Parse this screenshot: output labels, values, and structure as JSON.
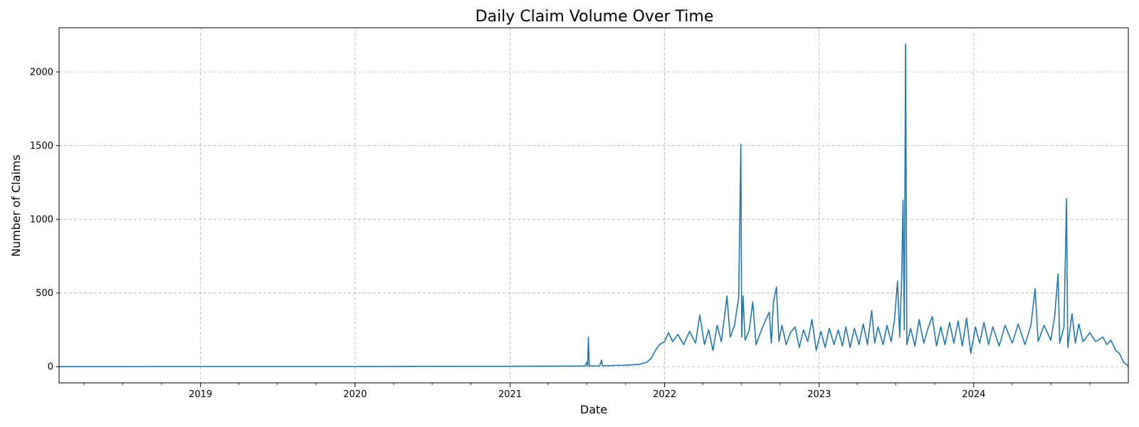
{
  "chart_data": {
    "type": "line",
    "title": "Daily Claim Volume Over Time",
    "xlabel": "Date",
    "ylabel": "Number of Claims",
    "x_range": [
      "2018-02-01",
      "2024-12-31"
    ],
    "ylim": [
      -110,
      2300
    ],
    "grid": true,
    "line_color": "#1f77b4",
    "x_ticks": [
      {
        "date": "2019-01-01",
        "label": "2019"
      },
      {
        "date": "2020-01-01",
        "label": "2020"
      },
      {
        "date": "2021-01-01",
        "label": "2021"
      },
      {
        "date": "2022-01-01",
        "label": "2022"
      },
      {
        "date": "2023-01-01",
        "label": "2023"
      },
      {
        "date": "2024-01-01",
        "label": "2024"
      }
    ],
    "y_ticks": [
      {
        "value": 0,
        "label": "0"
      },
      {
        "value": 500,
        "label": "500"
      },
      {
        "value": 1000,
        "label": "1000"
      },
      {
        "value": 1500,
        "label": "1500"
      },
      {
        "value": 2000,
        "label": "2000"
      }
    ],
    "series": [
      {
        "points": [
          [
            "2018-02-01",
            0
          ],
          [
            "2018-06-01",
            0
          ],
          [
            "2018-10-01",
            1
          ],
          [
            "2019-03-01",
            1
          ],
          [
            "2019-08-01",
            1
          ],
          [
            "2020-01-01",
            1
          ],
          [
            "2020-06-01",
            2
          ],
          [
            "2020-11-01",
            2
          ],
          [
            "2021-03-01",
            3
          ],
          [
            "2021-06-01",
            4
          ],
          [
            "2021-06-28",
            5
          ],
          [
            "2021-07-01",
            30
          ],
          [
            "2021-07-03",
            3
          ],
          [
            "2021-07-05",
            200
          ],
          [
            "2021-07-07",
            5
          ],
          [
            "2021-08-01",
            6
          ],
          [
            "2021-08-05",
            45
          ],
          [
            "2021-08-07",
            6
          ],
          [
            "2021-09-01",
            8
          ],
          [
            "2021-10-01",
            10
          ],
          [
            "2021-11-01",
            15
          ],
          [
            "2021-11-20",
            30
          ],
          [
            "2021-12-01",
            60
          ],
          [
            "2021-12-10",
            110
          ],
          [
            "2021-12-20",
            150
          ],
          [
            "2022-01-01",
            170
          ],
          [
            "2022-01-10",
            230
          ],
          [
            "2022-01-20",
            170
          ],
          [
            "2022-02-01",
            220
          ],
          [
            "2022-02-15",
            150
          ],
          [
            "2022-03-01",
            240
          ],
          [
            "2022-03-15",
            160
          ],
          [
            "2022-03-25",
            350
          ],
          [
            "2022-04-05",
            150
          ],
          [
            "2022-04-15",
            250
          ],
          [
            "2022-04-25",
            110
          ],
          [
            "2022-05-05",
            280
          ],
          [
            "2022-05-15",
            170
          ],
          [
            "2022-05-25",
            400
          ],
          [
            "2022-05-28",
            480
          ],
          [
            "2022-06-05",
            200
          ],
          [
            "2022-06-15",
            280
          ],
          [
            "2022-06-25",
            470
          ],
          [
            "2022-06-30",
            1510
          ],
          [
            "2022-07-02",
            200
          ],
          [
            "2022-07-05",
            480
          ],
          [
            "2022-07-10",
            180
          ],
          [
            "2022-07-20",
            250
          ],
          [
            "2022-07-28",
            440
          ],
          [
            "2022-08-05",
            150
          ],
          [
            "2022-08-15",
            230
          ],
          [
            "2022-08-25",
            300
          ],
          [
            "2022-09-05",
            370
          ],
          [
            "2022-09-10",
            160
          ],
          [
            "2022-09-15",
            440
          ],
          [
            "2022-09-22",
            540
          ],
          [
            "2022-09-28",
            170
          ],
          [
            "2022-10-05",
            280
          ],
          [
            "2022-10-15",
            150
          ],
          [
            "2022-10-25",
            230
          ],
          [
            "2022-11-05",
            270
          ],
          [
            "2022-11-15",
            130
          ],
          [
            "2022-11-25",
            250
          ],
          [
            "2022-12-05",
            170
          ],
          [
            "2022-12-15",
            320
          ],
          [
            "2022-12-25",
            110
          ],
          [
            "2023-01-05",
            240
          ],
          [
            "2023-01-15",
            130
          ],
          [
            "2023-01-25",
            260
          ],
          [
            "2023-02-05",
            150
          ],
          [
            "2023-02-15",
            250
          ],
          [
            "2023-02-25",
            140
          ],
          [
            "2023-03-05",
            270
          ],
          [
            "2023-03-15",
            130
          ],
          [
            "2023-03-25",
            260
          ],
          [
            "2023-04-05",
            150
          ],
          [
            "2023-04-15",
            290
          ],
          [
            "2023-04-25",
            150
          ],
          [
            "2023-05-05",
            380
          ],
          [
            "2023-05-12",
            160
          ],
          [
            "2023-05-20",
            270
          ],
          [
            "2023-06-01",
            150
          ],
          [
            "2023-06-10",
            280
          ],
          [
            "2023-06-20",
            170
          ],
          [
            "2023-06-28",
            320
          ],
          [
            "2023-07-05",
            580
          ],
          [
            "2023-07-10",
            200
          ],
          [
            "2023-07-15",
            630
          ],
          [
            "2023-07-18",
            1130
          ],
          [
            "2023-07-21",
            250
          ],
          [
            "2023-07-24",
            2190
          ],
          [
            "2023-07-27",
            150
          ],
          [
            "2023-08-05",
            260
          ],
          [
            "2023-08-15",
            140
          ],
          [
            "2023-08-25",
            320
          ],
          [
            "2023-09-05",
            160
          ],
          [
            "2023-09-15",
            260
          ],
          [
            "2023-09-25",
            340
          ],
          [
            "2023-10-05",
            140
          ],
          [
            "2023-10-15",
            270
          ],
          [
            "2023-10-25",
            150
          ],
          [
            "2023-11-05",
            300
          ],
          [
            "2023-11-15",
            160
          ],
          [
            "2023-11-25",
            310
          ],
          [
            "2023-12-05",
            140
          ],
          [
            "2023-12-15",
            330
          ],
          [
            "2023-12-25",
            90
          ],
          [
            "2024-01-05",
            270
          ],
          [
            "2024-01-15",
            160
          ],
          [
            "2024-01-25",
            300
          ],
          [
            "2024-02-05",
            150
          ],
          [
            "2024-02-15",
            270
          ],
          [
            "2024-03-01",
            140
          ],
          [
            "2024-03-15",
            280
          ],
          [
            "2024-04-01",
            160
          ],
          [
            "2024-04-15",
            290
          ],
          [
            "2024-05-01",
            150
          ],
          [
            "2024-05-15",
            280
          ],
          [
            "2024-05-25",
            530
          ],
          [
            "2024-06-01",
            170
          ],
          [
            "2024-06-15",
            280
          ],
          [
            "2024-07-01",
            180
          ],
          [
            "2024-07-10",
            340
          ],
          [
            "2024-07-18",
            630
          ],
          [
            "2024-07-22",
            160
          ],
          [
            "2024-08-01",
            270
          ],
          [
            "2024-08-07",
            1140
          ],
          [
            "2024-08-10",
            130
          ],
          [
            "2024-08-20",
            360
          ],
          [
            "2024-08-28",
            160
          ],
          [
            "2024-09-05",
            290
          ],
          [
            "2024-09-15",
            170
          ],
          [
            "2024-10-01",
            230
          ],
          [
            "2024-10-15",
            170
          ],
          [
            "2024-11-01",
            200
          ],
          [
            "2024-11-10",
            150
          ],
          [
            "2024-11-20",
            180
          ],
          [
            "2024-12-01",
            110
          ],
          [
            "2024-12-10",
            90
          ],
          [
            "2024-12-20",
            30
          ],
          [
            "2024-12-31",
            5
          ]
        ]
      }
    ]
  }
}
